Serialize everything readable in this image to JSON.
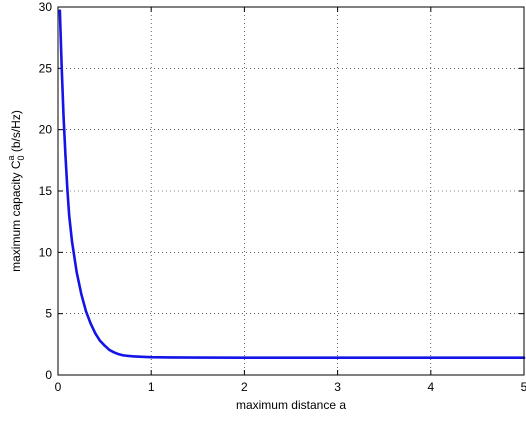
{
  "chart_data": {
    "type": "line",
    "xlabel": "maximum distance a",
    "ylabel": {
      "prefix": "maximum capacity C",
      "subscript": "0",
      "superscript": "a",
      "suffix": " (b/s/Hz)"
    },
    "xlim": [
      0,
      5
    ],
    "ylim": [
      0,
      30
    ],
    "xticks": [
      "0",
      "1",
      "2",
      "3",
      "4",
      "5"
    ],
    "yticks": [
      "0",
      "5",
      "10",
      "15",
      "20",
      "25",
      "30"
    ],
    "grid": true,
    "series_color": "#1414e6",
    "series": [
      {
        "x": [
          0.02,
          0.04,
          0.06,
          0.08,
          0.1,
          0.12,
          0.15,
          0.2,
          0.25,
          0.3,
          0.35,
          0.4,
          0.45,
          0.5,
          0.55,
          0.6,
          0.65,
          0.7,
          0.8,
          0.9,
          1.0,
          1.2,
          1.5,
          2.0,
          2.5,
          3.0,
          3.5,
          4.0,
          4.5,
          5.0
        ],
        "y": [
          29.7,
          25.0,
          21.0,
          17.9,
          15.2,
          13.0,
          10.9,
          8.4,
          6.6,
          5.2,
          4.2,
          3.4,
          2.8,
          2.4,
          2.05,
          1.85,
          1.7,
          1.6,
          1.52,
          1.48,
          1.45,
          1.43,
          1.42,
          1.41,
          1.41,
          1.41,
          1.41,
          1.41,
          1.41,
          1.41
        ]
      }
    ]
  }
}
